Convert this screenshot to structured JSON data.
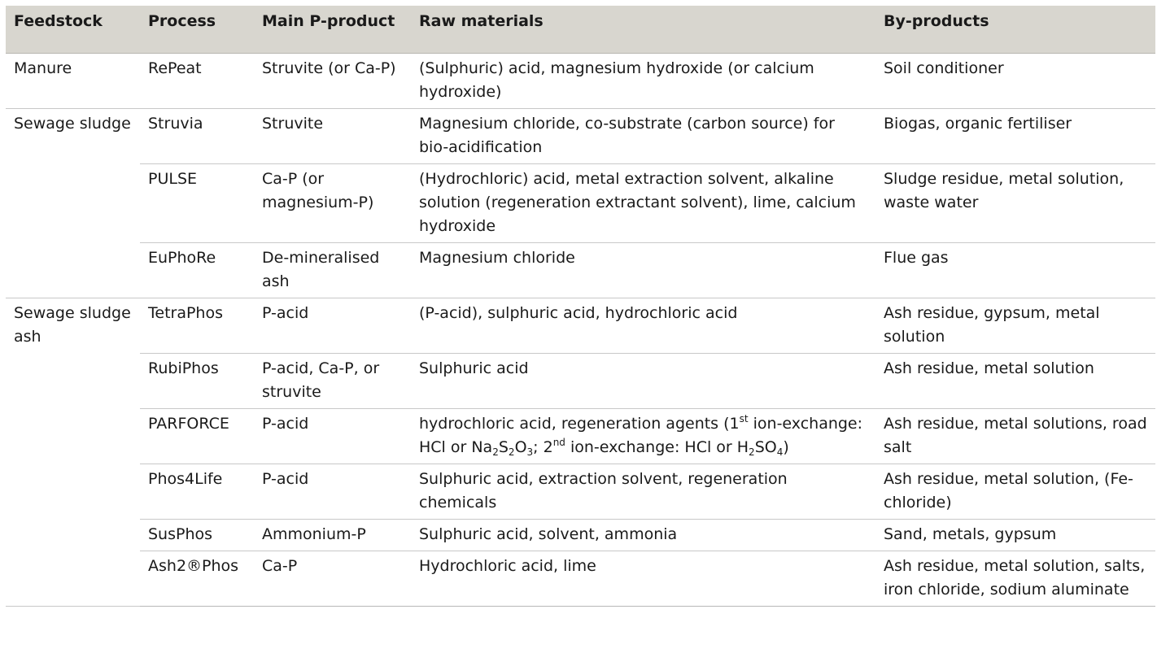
{
  "headers": {
    "feedstock": "Feedstock",
    "process": "Process",
    "main_p_product": "Main P-product",
    "raw_materials": "Raw materials",
    "by_products": "By-products"
  },
  "feedstocks": {
    "manure": "Manure",
    "sewage_sludge": "Sewage sludge",
    "sewage_sludge_ash": "Sewage sludge ash"
  },
  "rows": [
    {
      "process": "RePeat",
      "product": "Struvite (or Ca-P)",
      "raw": "(Sulphuric) acid, magnesium hydroxide (or calcium hydroxide)",
      "byproducts": "Soil conditioner"
    },
    {
      "process": "Struvia",
      "product": "Struvite",
      "raw": "Magnesium chloride, co-substrate (carbon source) for bio-acidification",
      "byproducts": "Biogas, organic fertiliser"
    },
    {
      "process": "PULSE",
      "product": "Ca-P (or magnesium-P)",
      "raw": "(Hydrochloric) acid, metal extraction solvent, alkaline solution (regeneration extractant solvent), lime, calcium hydroxide",
      "byproducts": "Sludge residue, metal solution, waste water"
    },
    {
      "process": "EuPhoRe",
      "product": "De-mineralised ash",
      "raw": "Magnesium chloride",
      "byproducts": "Flue gas"
    },
    {
      "process": "TetraPhos",
      "product": "P-acid",
      "raw": "(P-acid), sulphuric acid, hydrochloric acid",
      "byproducts": "Ash residue, gypsum, metal solution"
    },
    {
      "process": "RubiPhos",
      "product": "P-acid, Ca-P, or struvite",
      "raw": "Sulphuric acid",
      "byproducts": "Ash residue, metal solution"
    },
    {
      "process": "PARFORCE",
      "product": "P-acid",
      "raw_parts": {
        "a": "hydrochloric acid, regeneration agents (1",
        "sup1": "st",
        "b": " ion-exchange: HCl or Na",
        "sub1": "2",
        "c": "S",
        "sub2": "2",
        "d": "O",
        "sub3": "3",
        "e": "; 2",
        "sup2": "nd",
        "f": " ion-exchange: HCl or H",
        "sub4": "2",
        "g": "SO",
        "sub5": "4",
        "h": ")"
      },
      "byproducts": "Ash residue, metal solutions, road salt"
    },
    {
      "process": "Phos4Life",
      "product": "P-acid",
      "raw": "Sulphuric acid, extraction solvent, regeneration chemicals",
      "byproducts": "Ash residue, metal solution, (Fe-chloride)"
    },
    {
      "process": "SusPhos",
      "product": "Ammonium-P",
      "raw": "Sulphuric acid, solvent, ammonia",
      "byproducts": "Sand, metals, gypsum"
    },
    {
      "process": "Ash2®Phos",
      "product": "Ca-P",
      "raw": "Hydrochloric acid, lime",
      "byproducts": "Ash residue, metal solution, salts, iron chloride, sodium aluminate"
    }
  ]
}
